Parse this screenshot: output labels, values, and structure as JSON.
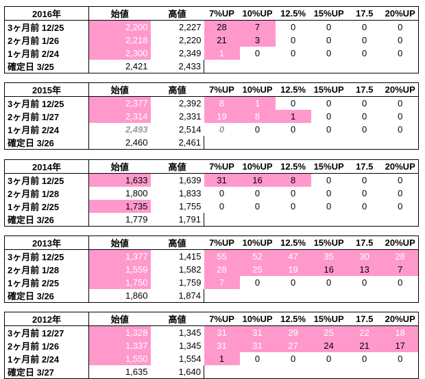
{
  "headers": {
    "open": "始値",
    "high": "高値",
    "p7": "7%UP",
    "p10": "10%UP",
    "p125": "12.5%",
    "p15": "15%UP",
    "p175": "17.5",
    "p20": "20%UP"
  },
  "colors": {
    "highlight": "#ff99cc"
  },
  "blocks": [
    {
      "year": "2016年",
      "rows": [
        {
          "label": "3ヶ月前  12/25",
          "open": "2,200",
          "high": "2,227",
          "p7": "28",
          "p10": "7",
          "p125": "0",
          "p15": "0",
          "p175": "0",
          "p20": "0"
        },
        {
          "label": "2ヶ月前   1/26",
          "open": "2,218",
          "high": "2,220",
          "p7": "21",
          "p10": "3",
          "p125": "0",
          "p15": "0",
          "p175": "0",
          "p20": "0"
        },
        {
          "label": "1ヶ月前   2/24",
          "open": "2,300",
          "high": "2,349",
          "p7": "1",
          "p10": "0",
          "p125": "0",
          "p15": "0",
          "p175": "0",
          "p20": "0"
        },
        {
          "label": "確定日  3/25",
          "open": "2,421",
          "high": "2,433"
        }
      ]
    },
    {
      "year": "2015年",
      "rows": [
        {
          "label": "3ヶ月前  12/25",
          "open": "2,377",
          "high": "2,392",
          "p7": "8",
          "p10": "1",
          "p125": "0",
          "p15": "0",
          "p175": "0",
          "p20": "0"
        },
        {
          "label": "2ヶ月前   1/27",
          "open": "2,314",
          "high": "2,331",
          "p7": "19",
          "p10": "8",
          "p125": "1",
          "p15": "0",
          "p175": "0",
          "p20": "0"
        },
        {
          "label": "1ヶ月前   2/24",
          "open": "2,493",
          "high": "2,514",
          "p7": "0",
          "p10": "0",
          "p125": "0",
          "p15": "0",
          "p175": "0",
          "p20": "0"
        },
        {
          "label": "確定日  3/26",
          "open": "2,460",
          "high": "2,461"
        }
      ]
    },
    {
      "year": "2014年",
      "rows": [
        {
          "label": "3ヶ月前  12/25",
          "open": "1,633",
          "high": "1,639",
          "p7": "31",
          "p10": "16",
          "p125": "8",
          "p15": "0",
          "p175": "0",
          "p20": "0"
        },
        {
          "label": "2ヶ月前   1/28",
          "open": "1,800",
          "high": "1,833",
          "p7": "0",
          "p10": "0",
          "p125": "0",
          "p15": "0",
          "p175": "0",
          "p20": "0"
        },
        {
          "label": "1ヶ月前   2/25",
          "open": "1,735",
          "high": "1,755",
          "p7": "0",
          "p10": "0",
          "p125": "0",
          "p15": "0",
          "p175": "0",
          "p20": "0"
        },
        {
          "label": "確定日  3/26",
          "open": "1,779",
          "high": "1,791"
        }
      ]
    },
    {
      "year": "2013年",
      "rows": [
        {
          "label": "3ヶ月前  12/25",
          "open": "1,377",
          "high": "1,415",
          "p7": "55",
          "p10": "52",
          "p125": "47",
          "p15": "35",
          "p175": "30",
          "p20": "28"
        },
        {
          "label": "2ヶ月前   1/28",
          "open": "1,559",
          "high": "1,582",
          "p7": "28",
          "p10": "25",
          "p125": "19",
          "p15": "16",
          "p175": "13",
          "p20": "7"
        },
        {
          "label": "1ヶ月前   2/25",
          "open": "1,750",
          "high": "1,759",
          "p7": "7",
          "p10": "0",
          "p125": "0",
          "p15": "0",
          "p175": "0",
          "p20": "0"
        },
        {
          "label": "確定日  3/26",
          "open": "1,860",
          "high": "1,874"
        }
      ]
    },
    {
      "year": "2012年",
      "rows": [
        {
          "label": "3ヶ月前  12/27",
          "open": "1,328",
          "high": "1,345",
          "p7": "31",
          "p10": "31",
          "p125": "29",
          "p15": "25",
          "p175": "22",
          "p20": "18"
        },
        {
          "label": "2ヶ月前   1/26",
          "open": "1,337",
          "high": "1,345",
          "p7": "31",
          "p10": "31",
          "p125": "27",
          "p15": "24",
          "p175": "21",
          "p20": "17"
        },
        {
          "label": "1ヶ月前   2/24",
          "open": "1,550",
          "high": "1,554",
          "p7": "1",
          "p10": "0",
          "p125": "0",
          "p15": "0",
          "p175": "0",
          "p20": "0"
        },
        {
          "label": "確定日  3/27",
          "open": "1,635",
          "high": "1,640"
        }
      ]
    }
  ]
}
